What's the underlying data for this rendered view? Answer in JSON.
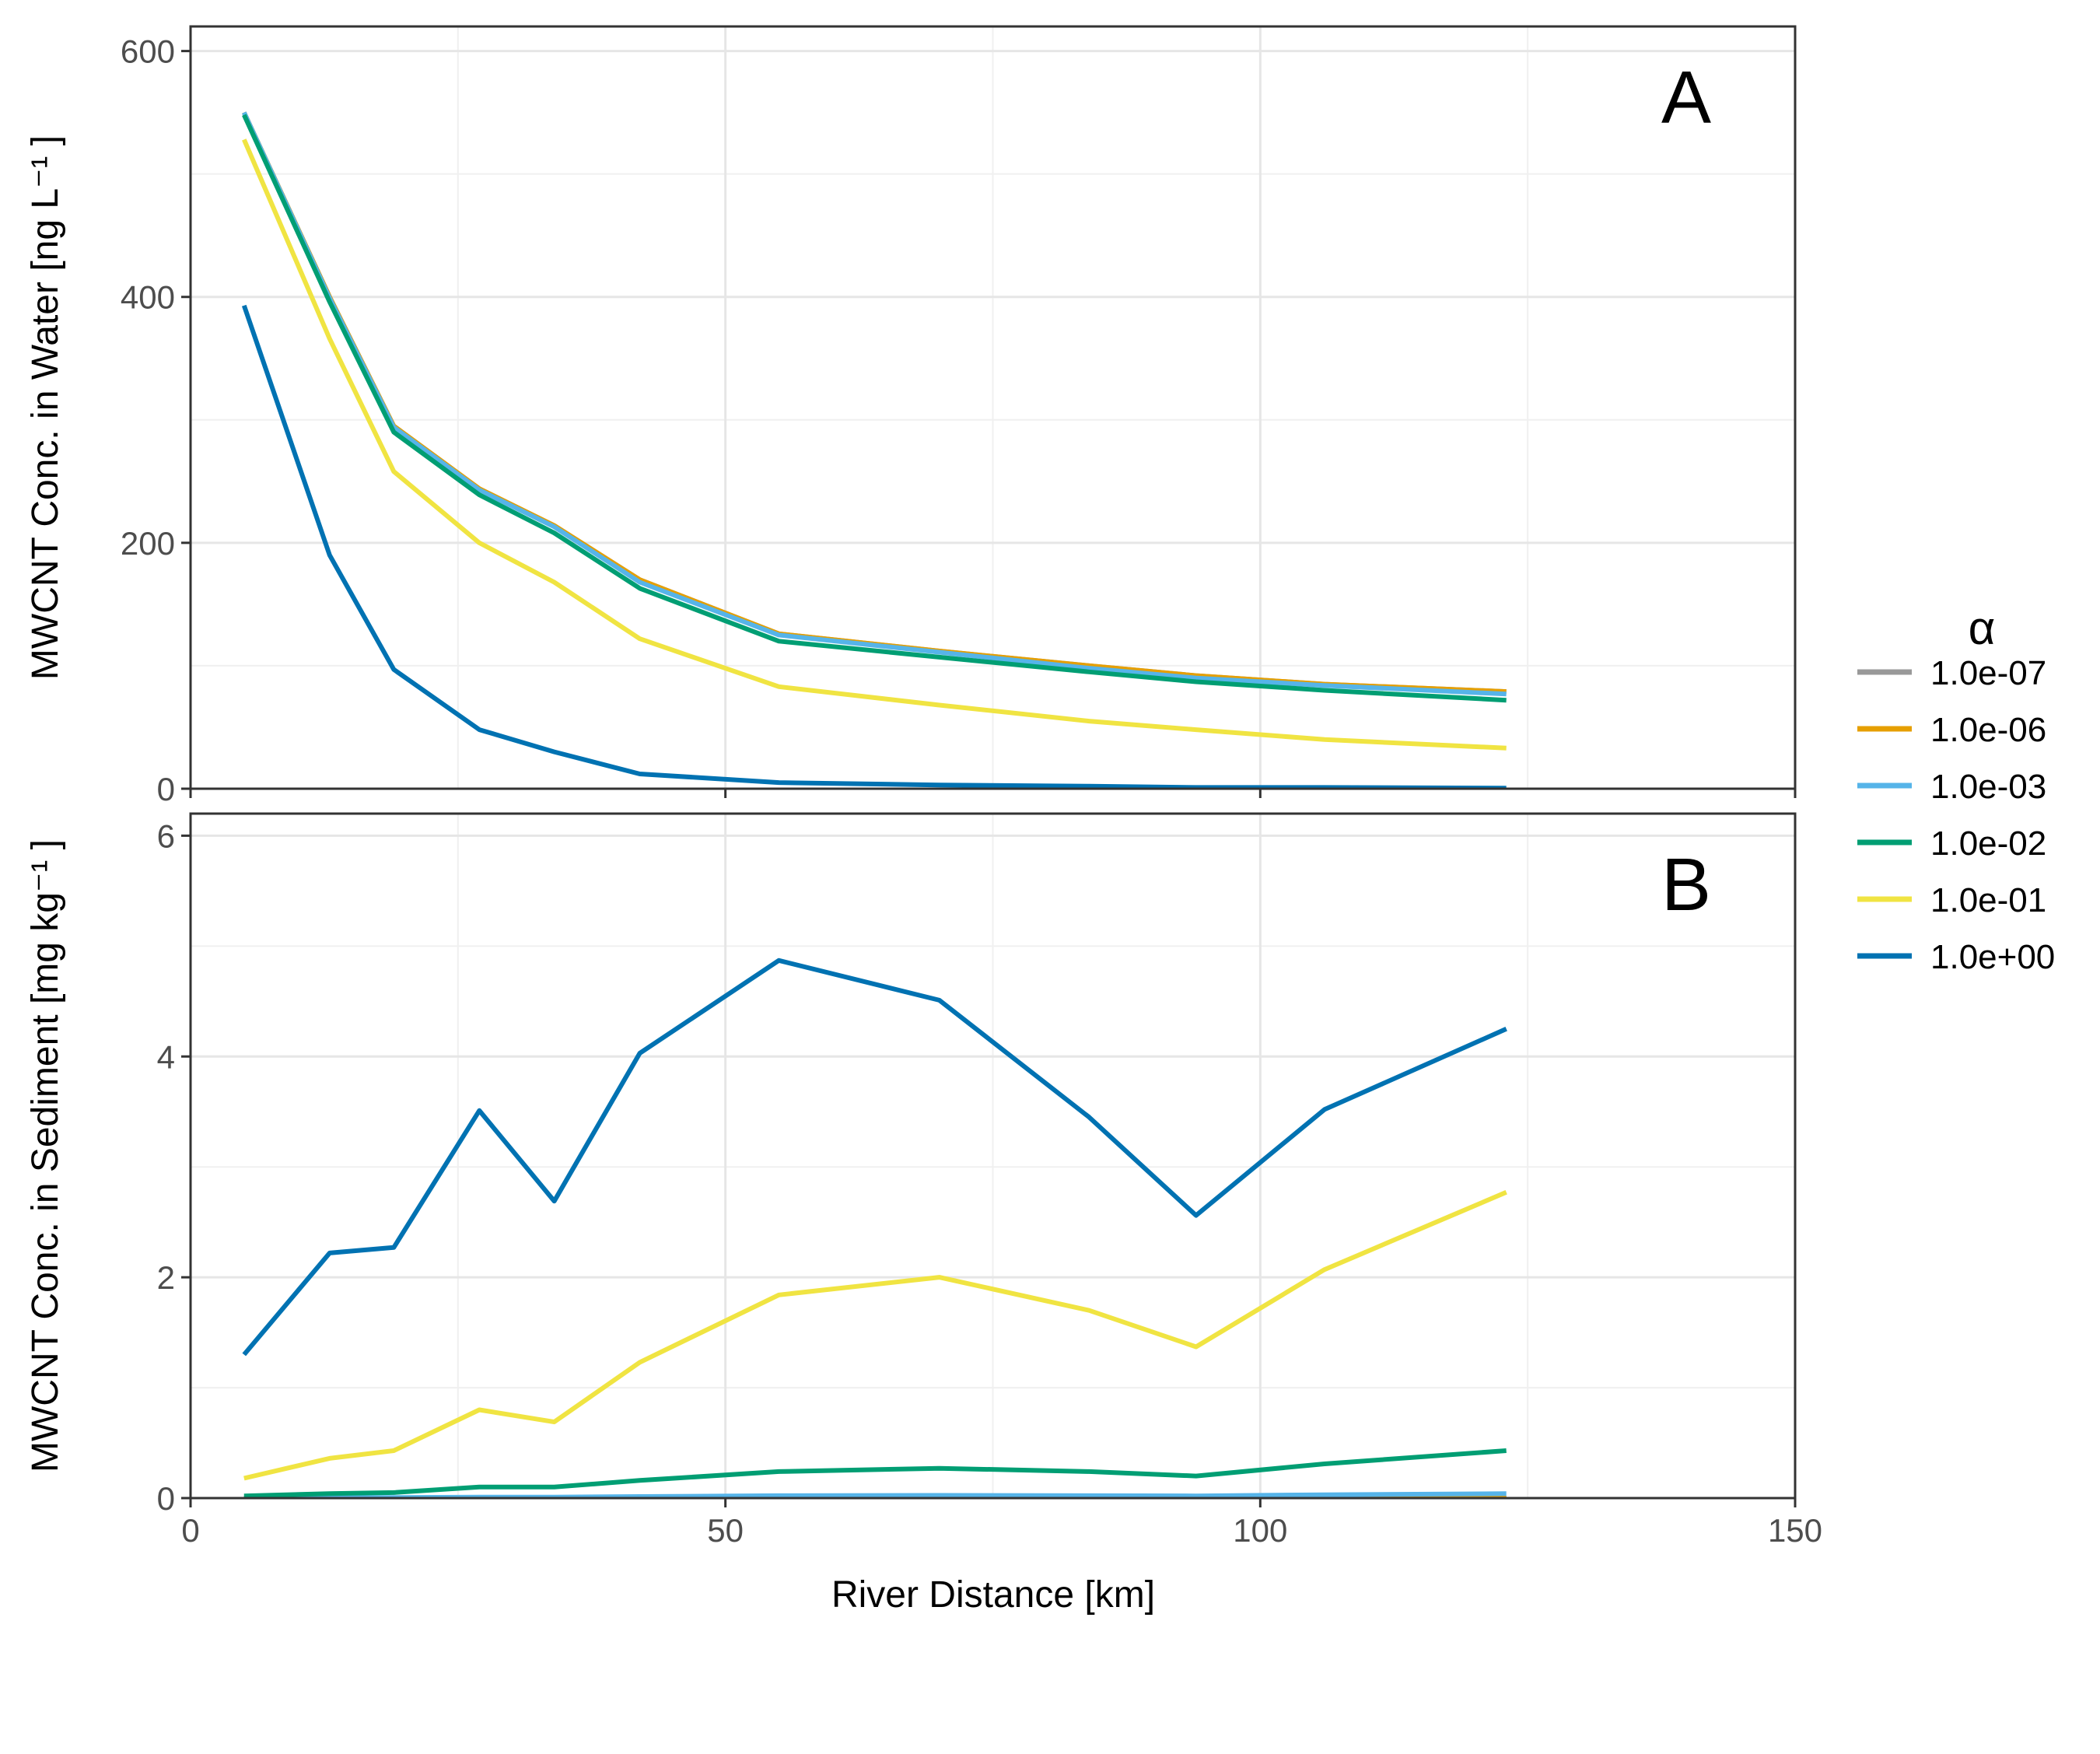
{
  "legend": {
    "title": "α",
    "entries": [
      {
        "label": "1.0e-07",
        "color": "#999999"
      },
      {
        "label": "1.0e-06",
        "color": "#E69F00"
      },
      {
        "label": "1.0e-03",
        "color": "#56B4E9"
      },
      {
        "label": "1.0e-02",
        "color": "#009E73"
      },
      {
        "label": "1.0e-01",
        "color": "#F0E442"
      },
      {
        "label": "1.0e+00",
        "color": "#0072B2"
      }
    ]
  },
  "chart_data": [
    {
      "type": "line",
      "panel_label": "A",
      "xlabel": "River Distance [km]",
      "ylabel": "MWCNT Conc. in Water [ng  L⁻¹ ]",
      "xlim": [
        0,
        150
      ],
      "ylim": [
        0,
        620
      ],
      "xticks": [
        0,
        50,
        100,
        150
      ],
      "yticks": [
        0,
        200,
        400,
        600
      ],
      "grid": true,
      "x": [
        5,
        13,
        19,
        27,
        34,
        42,
        55,
        70,
        84,
        94,
        106,
        123
      ],
      "series": [
        {
          "name": "1.0e-07",
          "color": "#999999",
          "values": [
            550,
            400,
            295,
            244,
            214,
            170,
            126,
            112,
            100,
            92,
            85,
            79
          ]
        },
        {
          "name": "1.0e-06",
          "color": "#E69F00",
          "values": [
            550,
            400,
            295,
            244,
            214,
            170,
            126,
            112,
            100,
            92,
            85,
            79
          ]
        },
        {
          "name": "1.0e-03",
          "color": "#56B4E9",
          "values": [
            550,
            399,
            294,
            243,
            213,
            168,
            125,
            111,
            98,
            90,
            84,
            77
          ]
        },
        {
          "name": "1.0e-02",
          "color": "#009E73",
          "values": [
            548,
            396,
            290,
            239,
            208,
            163,
            120,
            107,
            95,
            87,
            80,
            72
          ]
        },
        {
          "name": "1.0e-01",
          "color": "#F0E442",
          "values": [
            528,
            366,
            258,
            200,
            168,
            122,
            83,
            68,
            55,
            48,
            40,
            33
          ]
        },
        {
          "name": "1.0e+00",
          "color": "#0072B2",
          "values": [
            393,
            190,
            97,
            48,
            30,
            12,
            5,
            3,
            2,
            1,
            1,
            0.5
          ]
        }
      ]
    },
    {
      "type": "line",
      "panel_label": "B",
      "xlabel": "River Distance [km]",
      "ylabel": "MWCNT Conc. in Sediment [mg  kg⁻¹ ]",
      "xlim": [
        0,
        150
      ],
      "ylim": [
        0,
        6.2
      ],
      "xticks": [
        0,
        50,
        100,
        150
      ],
      "yticks": [
        0,
        2,
        4,
        6
      ],
      "grid": true,
      "x": [
        5,
        13,
        19,
        27,
        34,
        42,
        55,
        70,
        84,
        94,
        106,
        123
      ],
      "series": [
        {
          "name": "1.0e-07",
          "color": "#999999",
          "values": [
            0,
            0,
            0,
            0,
            0,
            0,
            0,
            0,
            0,
            0,
            0,
            0
          ]
        },
        {
          "name": "1.0e-06",
          "color": "#E69F00",
          "values": [
            0,
            0,
            0,
            0,
            0,
            0,
            0,
            0,
            0,
            0,
            0,
            0
          ]
        },
        {
          "name": "1.0e-03",
          "color": "#56B4E9",
          "values": [
            0.002,
            0.004,
            0.005,
            0.009,
            0.009,
            0.014,
            0.022,
            0.025,
            0.022,
            0.02,
            0.03,
            0.04
          ]
        },
        {
          "name": "1.0e-02",
          "color": "#009E73",
          "values": [
            0.02,
            0.04,
            0.05,
            0.1,
            0.1,
            0.16,
            0.24,
            0.27,
            0.24,
            0.2,
            0.31,
            0.43
          ]
        },
        {
          "name": "1.0e-01",
          "color": "#F0E442",
          "values": [
            0.18,
            0.36,
            0.43,
            0.8,
            0.69,
            1.23,
            1.84,
            2.0,
            1.7,
            1.37,
            2.07,
            2.77
          ]
        },
        {
          "name": "1.0e+00",
          "color": "#0072B2",
          "values": [
            1.3,
            2.22,
            2.27,
            3.51,
            2.69,
            4.03,
            4.87,
            4.51,
            3.45,
            2.56,
            3.52,
            4.25
          ]
        }
      ]
    }
  ]
}
